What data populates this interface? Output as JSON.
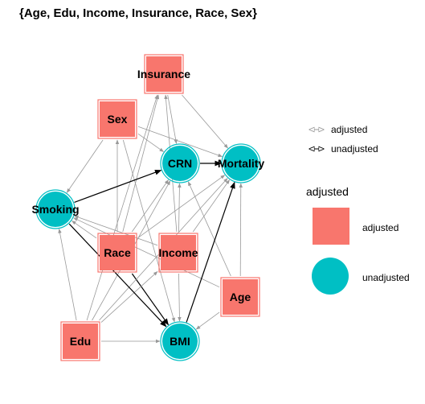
{
  "title": "{Age, Edu, Income, Insurance, Race, Sex}",
  "nodes": [
    {
      "id": "Insurance",
      "label": "Insurance",
      "status": "adjusted"
    },
    {
      "id": "Sex",
      "label": "Sex",
      "status": "adjusted"
    },
    {
      "id": "CRN",
      "label": "CRN",
      "status": "unadjusted"
    },
    {
      "id": "Mortality",
      "label": "Mortality",
      "status": "unadjusted"
    },
    {
      "id": "Smoking",
      "label": "Smoking",
      "status": "unadjusted"
    },
    {
      "id": "Race",
      "label": "Race",
      "status": "adjusted"
    },
    {
      "id": "Income",
      "label": "Income",
      "status": "adjusted"
    },
    {
      "id": "Age",
      "label": "Age",
      "status": "adjusted"
    },
    {
      "id": "Edu",
      "label": "Edu",
      "status": "adjusted"
    },
    {
      "id": "BMI",
      "label": "BMI",
      "status": "unadjusted"
    }
  ],
  "edges": [
    {
      "from": "Insurance",
      "to": "CRN",
      "type": "adjusted"
    },
    {
      "from": "Insurance",
      "to": "Mortality",
      "type": "adjusted"
    },
    {
      "from": "Sex",
      "to": "Smoking",
      "type": "adjusted"
    },
    {
      "from": "Sex",
      "to": "CRN",
      "type": "adjusted"
    },
    {
      "from": "Sex",
      "to": "Mortality",
      "type": "adjusted"
    },
    {
      "from": "Sex",
      "to": "BMI",
      "type": "adjusted"
    },
    {
      "from": "Race",
      "to": "Insurance",
      "type": "adjusted"
    },
    {
      "from": "Race",
      "to": "Sex",
      "type": "adjusted"
    },
    {
      "from": "Race",
      "to": "Smoking",
      "type": "adjusted"
    },
    {
      "from": "Race",
      "to": "CRN",
      "type": "adjusted"
    },
    {
      "from": "Race",
      "to": "Mortality",
      "type": "adjusted"
    },
    {
      "from": "Race",
      "to": "BMI",
      "type": "unadjusted"
    },
    {
      "from": "Income",
      "to": "Insurance",
      "type": "adjusted"
    },
    {
      "from": "Income",
      "to": "Smoking",
      "type": "adjusted"
    },
    {
      "from": "Income",
      "to": "CRN",
      "type": "adjusted"
    },
    {
      "from": "Income",
      "to": "Mortality",
      "type": "adjusted"
    },
    {
      "from": "Income",
      "to": "BMI",
      "type": "adjusted"
    },
    {
      "from": "Age",
      "to": "CRN",
      "type": "adjusted"
    },
    {
      "from": "Age",
      "to": "Mortality",
      "type": "adjusted"
    },
    {
      "from": "Age",
      "to": "Smoking",
      "type": "adjusted"
    },
    {
      "from": "Age",
      "to": "BMI",
      "type": "adjusted"
    },
    {
      "from": "Edu",
      "to": "Insurance",
      "type": "adjusted"
    },
    {
      "from": "Edu",
      "to": "Smoking",
      "type": "adjusted"
    },
    {
      "from": "Edu",
      "to": "CRN",
      "type": "adjusted"
    },
    {
      "from": "Edu",
      "to": "Mortality",
      "type": "adjusted"
    },
    {
      "from": "Edu",
      "to": "Income",
      "type": "adjusted"
    },
    {
      "from": "Edu",
      "to": "BMI",
      "type": "adjusted"
    },
    {
      "from": "Smoking",
      "to": "CRN",
      "type": "unadjusted"
    },
    {
      "from": "Smoking",
      "to": "BMI",
      "type": "unadjusted"
    },
    {
      "from": "CRN",
      "to": "Mortality",
      "type": "unadjusted"
    },
    {
      "from": "BMI",
      "to": "Mortality",
      "type": "unadjusted"
    }
  ],
  "edge_legend": [
    {
      "label": "adjusted",
      "type": "adjusted"
    },
    {
      "label": "unadjusted",
      "type": "unadjusted"
    }
  ],
  "node_legend": {
    "title": "adjusted",
    "items": [
      {
        "label": "adjusted",
        "shape": "square"
      },
      {
        "label": "unadjusted",
        "shape": "circle"
      }
    ]
  },
  "colors": {
    "adjusted_fill": "#F8766D",
    "unadjusted_fill": "#00BFC4",
    "adjusted_edge": "#999999",
    "unadjusted_edge": "#000000"
  }
}
